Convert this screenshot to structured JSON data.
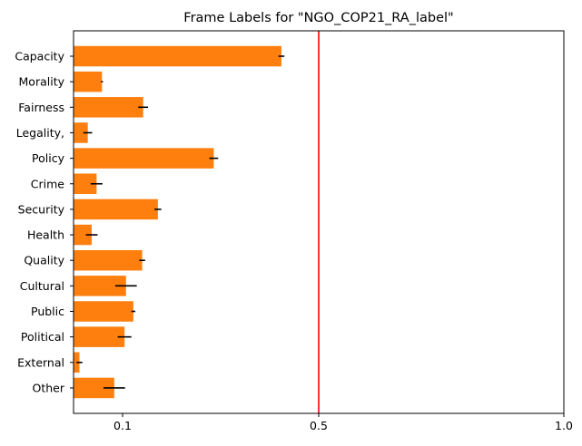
{
  "chart_data": {
    "type": "bar",
    "orientation": "horizontal",
    "title": "Frame Labels for \"NGO_COP21_RA_label\"",
    "xlabel": "",
    "ylabel": "",
    "xlim": [
      0,
      1.0
    ],
    "xticks": [
      {
        "value": 0.1,
        "label": "0.1"
      },
      {
        "value": 0.5,
        "label": "0.5"
      },
      {
        "value": 1.0,
        "label": "1.0"
      }
    ],
    "grid": false,
    "legend": "none",
    "bar_color": "#ff7f0e",
    "error_color": "#000000",
    "reference_line": {
      "value": 0.5,
      "color": "#ff0000"
    },
    "categories": [
      "Capacity",
      "Morality",
      "Fairness",
      "Legality,",
      "Policy",
      "Crime",
      "Security",
      "Health",
      "Quality",
      "Cultural",
      "Public",
      "Political",
      "External",
      "Other"
    ],
    "values": [
      0.424,
      0.058,
      0.142,
      0.029,
      0.286,
      0.047,
      0.172,
      0.037,
      0.14,
      0.107,
      0.122,
      0.104,
      0.012,
      0.083
    ],
    "errors": [
      0.006,
      0.002,
      0.01,
      0.009,
      0.009,
      0.012,
      0.007,
      0.012,
      0.006,
      0.022,
      0.004,
      0.014,
      0.006,
      0.022
    ]
  }
}
